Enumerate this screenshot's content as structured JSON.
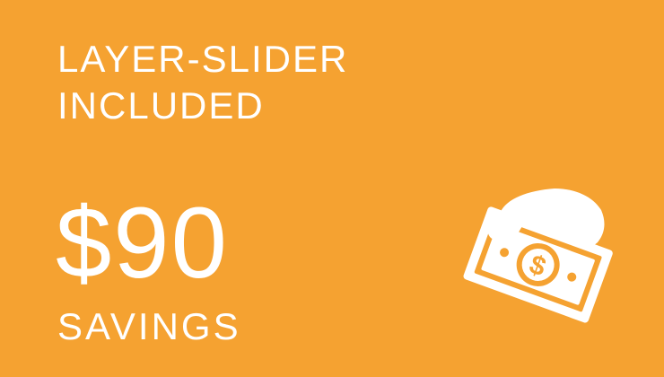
{
  "banner": {
    "background_color": "#F5A231",
    "text_color": "#FFFFFF",
    "headline": {
      "line1": "LAYER-SLIDER",
      "line2": "INCLUDED"
    },
    "amount": "$90",
    "caption": "SAVINGS",
    "icon": "hand-holding-money-icon"
  }
}
